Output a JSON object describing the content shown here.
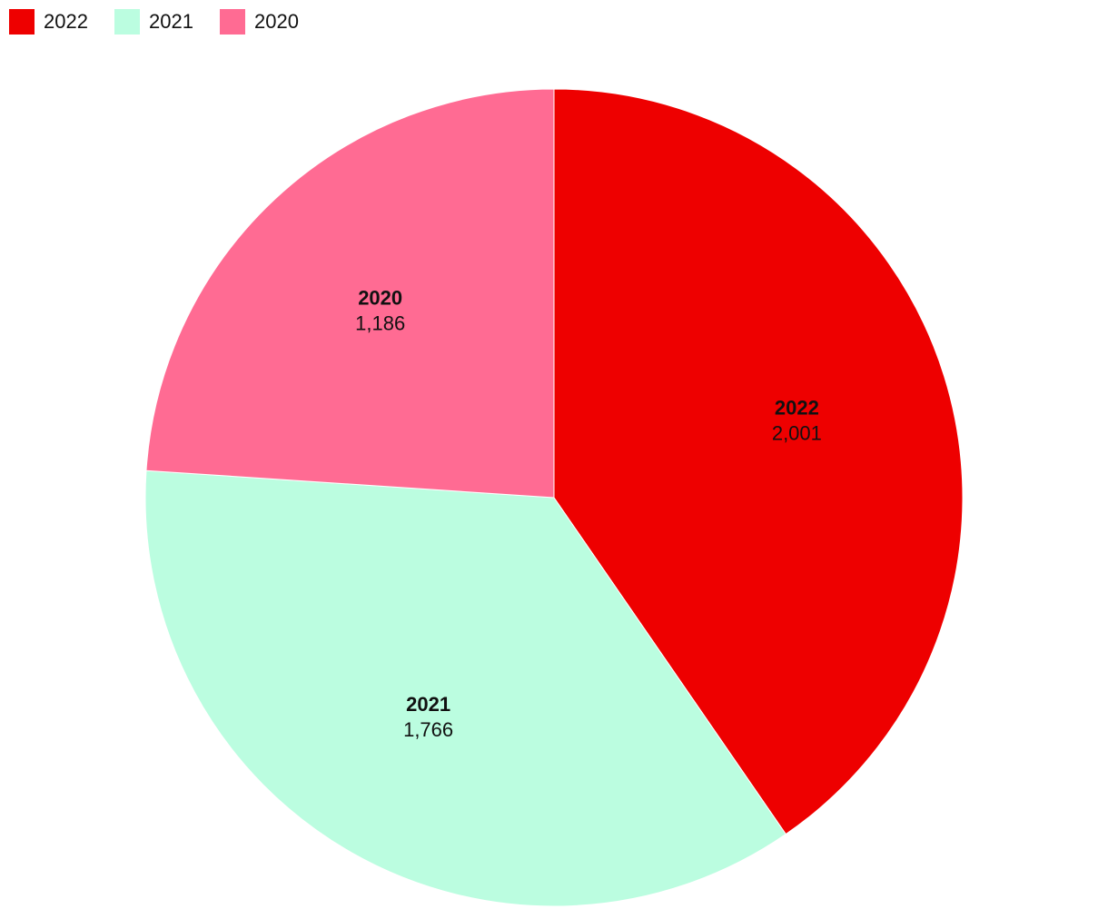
{
  "chart_data": {
    "type": "pie",
    "categories": [
      "2022",
      "2021",
      "2020"
    ],
    "values": [
      2001,
      1766,
      1186
    ],
    "value_labels": [
      "2,001",
      "1,766",
      "1,186"
    ],
    "colors": [
      "#ee0000",
      "#bbfde0",
      "#ff6b93"
    ],
    "legend": "top-left"
  }
}
